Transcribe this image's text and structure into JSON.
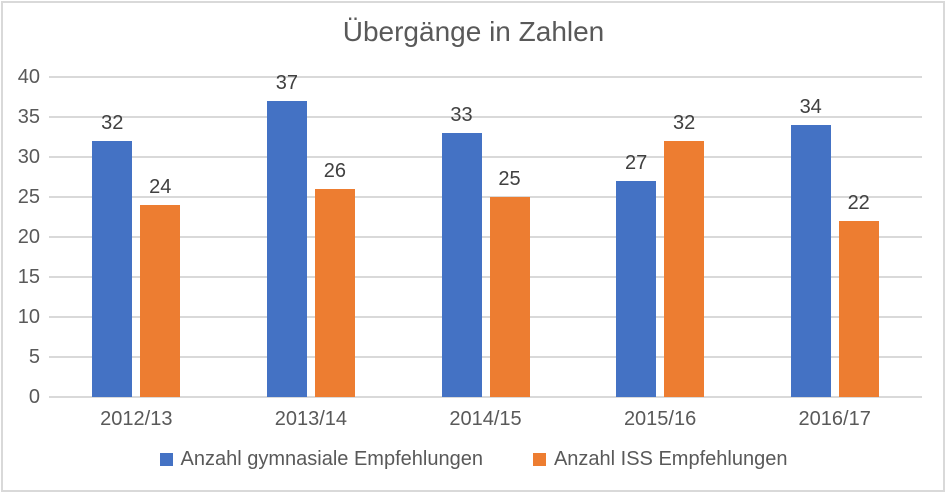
{
  "chart_data": {
    "type": "bar",
    "title": "Übergänge in Zahlen",
    "categories": [
      "2012/13",
      "2013/14",
      "2014/15",
      "2015/16",
      "2016/17"
    ],
    "series": [
      {
        "name": "Anzahl gymnasiale Empfehlungen",
        "color": "#4472C4",
        "values": [
          32,
          37,
          33,
          27,
          34
        ]
      },
      {
        "name": "Anzahl ISS Empfehlungen",
        "color": "#ED7D31",
        "values": [
          24,
          26,
          25,
          32,
          22
        ]
      }
    ],
    "xlabel": "",
    "ylabel": "",
    "ylim": [
      0,
      40
    ],
    "yticks": [
      0,
      5,
      10,
      15,
      20,
      25,
      30,
      35,
      40
    ],
    "grid": "horizontal",
    "legend_position": "bottom",
    "data_labels": true
  },
  "colors": {
    "series_blue": "#4472C4",
    "series_orange": "#ED7D31",
    "title_text": "#595959",
    "axis_text": "#595959",
    "data_label_text": "#404040",
    "gridline": "#D9D9D9",
    "chart_border": "#D9D9D9",
    "background": "#FFFFFF"
  }
}
